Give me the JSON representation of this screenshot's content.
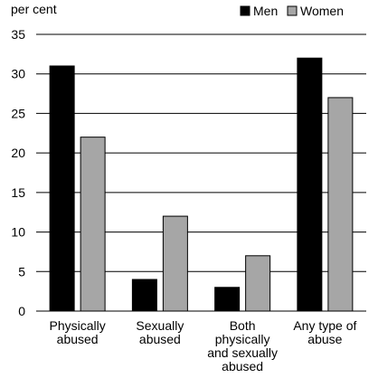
{
  "chart_data": {
    "type": "bar",
    "ylabel": "per cent",
    "ylim": [
      0,
      35
    ],
    "yticks": [
      0,
      5,
      10,
      15,
      20,
      25,
      30,
      35
    ],
    "grid": "horizontal",
    "legend_position": "top-right",
    "categories": [
      [
        "Physically",
        "abused"
      ],
      [
        "Sexually",
        "abused"
      ],
      [
        "Both",
        "physically",
        "and sexually",
        "abused"
      ],
      [
        "Any type of",
        "abuse"
      ]
    ],
    "series": [
      {
        "name": "Men",
        "color": "#000000",
        "values": [
          31,
          4,
          3,
          32
        ]
      },
      {
        "name": "Women",
        "color": "#a6a6a6",
        "values": [
          22,
          12,
          7,
          27
        ]
      }
    ]
  }
}
